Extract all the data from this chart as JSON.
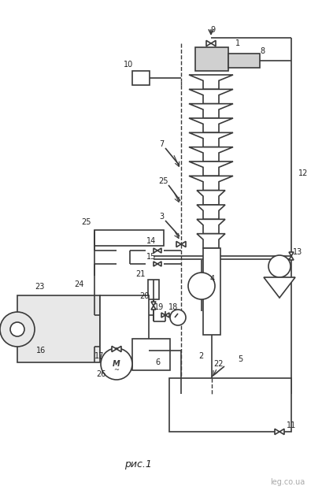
{
  "line_color": "#3a3a3a",
  "title": "рис.1",
  "watermark": "leg.co.ua"
}
